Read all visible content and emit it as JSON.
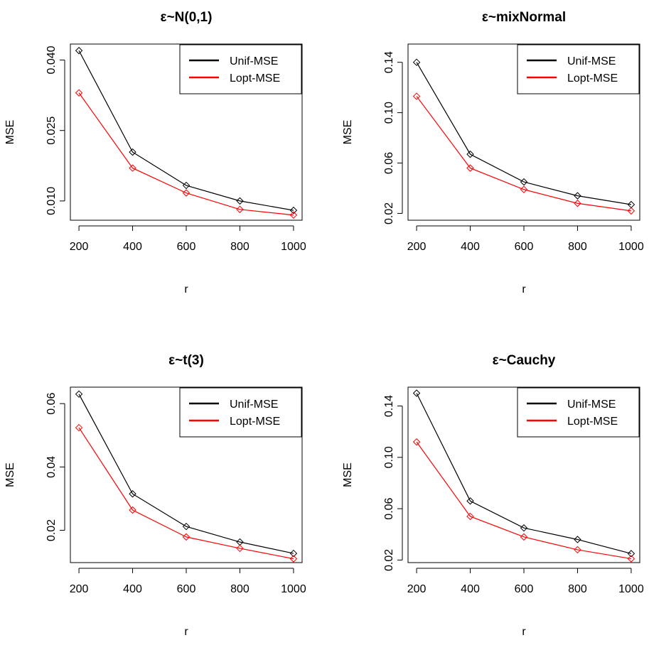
{
  "chart_data": [
    {
      "type": "line",
      "title": "ε~N(0,1)",
      "xlabel": "r",
      "ylabel": "MSE",
      "x": [
        200,
        400,
        600,
        800,
        1000
      ],
      "xticks": [
        200,
        400,
        600,
        800,
        1000
      ],
      "xtick_labels": [
        "200",
        "400",
        "600",
        "800",
        "1000"
      ],
      "xlim": [
        168,
        1032
      ],
      "yticks": [
        0.01,
        0.025,
        0.04
      ],
      "ytick_labels": [
        "0.010",
        "0.025",
        "0.040"
      ],
      "ylim": [
        0.0059,
        0.0434
      ],
      "legend": "top-right",
      "grid": false,
      "series": [
        {
          "name": "Unif-MSE",
          "color": "#000000",
          "values": [
            0.042,
            0.0204,
            0.0133,
            0.01,
            0.008
          ]
        },
        {
          "name": "Lopt-MSE",
          "color": "#ff0000",
          "values": [
            0.033,
            0.017,
            0.0117,
            0.0082,
            0.007
          ]
        }
      ]
    },
    {
      "type": "line",
      "title": "ε~mixNormal",
      "xlabel": "r",
      "ylabel": "MSE",
      "x": [
        200,
        400,
        600,
        800,
        1000
      ],
      "xticks": [
        200,
        400,
        600,
        800,
        1000
      ],
      "xtick_labels": [
        "200",
        "400",
        "600",
        "800",
        "1000"
      ],
      "xlim": [
        168,
        1032
      ],
      "yticks": [
        0.02,
        0.06,
        0.1,
        0.14
      ],
      "ytick_labels": [
        "0.02",
        "0.06",
        "0.10",
        "0.14"
      ],
      "ylim": [
        0.0146,
        0.1545
      ],
      "legend": "top-right",
      "grid": false,
      "series": [
        {
          "name": "Unif-MSE",
          "color": "#000000",
          "values": [
            0.14,
            0.067,
            0.045,
            0.034,
            0.027
          ]
        },
        {
          "name": "Lopt-MSE",
          "color": "#ff0000",
          "values": [
            0.113,
            0.056,
            0.039,
            0.028,
            0.022
          ]
        }
      ]
    },
    {
      "type": "line",
      "title": "ε~t(3)",
      "xlabel": "r",
      "ylabel": "MSE",
      "x": [
        200,
        400,
        600,
        800,
        1000
      ],
      "xticks": [
        200,
        400,
        600,
        800,
        1000
      ],
      "xtick_labels": [
        "200",
        "400",
        "600",
        "800",
        "1000"
      ],
      "xlim": [
        168,
        1032
      ],
      "yticks": [
        0.02,
        0.04,
        0.06
      ],
      "ytick_labels": [
        "0.02",
        "0.04",
        "0.06"
      ],
      "ylim": [
        0.0098,
        0.0652
      ],
      "legend": "top-right",
      "grid": false,
      "series": [
        {
          "name": "Unif-MSE",
          "color": "#000000",
          "values": [
            0.063,
            0.0315,
            0.0212,
            0.0163,
            0.0127
          ]
        },
        {
          "name": "Lopt-MSE",
          "color": "#ff0000",
          "values": [
            0.0524,
            0.0264,
            0.0179,
            0.0143,
            0.011
          ]
        }
      ]
    },
    {
      "type": "line",
      "title": "ε~Cauchy",
      "xlabel": "r",
      "ylabel": "MSE",
      "x": [
        200,
        400,
        600,
        800,
        1000
      ],
      "xticks": [
        200,
        400,
        600,
        800,
        1000
      ],
      "xtick_labels": [
        "200",
        "400",
        "600",
        "800",
        "1000"
      ],
      "xlim": [
        168,
        1032
      ],
      "yticks": [
        0.02,
        0.06,
        0.1,
        0.14
      ],
      "ytick_labels": [
        "0.02",
        "0.06",
        "0.10",
        "0.14"
      ],
      "ylim": [
        0.018,
        0.1547
      ],
      "legend": "top-right",
      "grid": false,
      "series": [
        {
          "name": "Unif-MSE",
          "color": "#000000",
          "values": [
            0.15,
            0.066,
            0.045,
            0.036,
            0.025
          ]
        },
        {
          "name": "Lopt-MSE",
          "color": "#ff0000",
          "values": [
            0.112,
            0.054,
            0.038,
            0.028,
            0.021
          ]
        }
      ]
    }
  ]
}
